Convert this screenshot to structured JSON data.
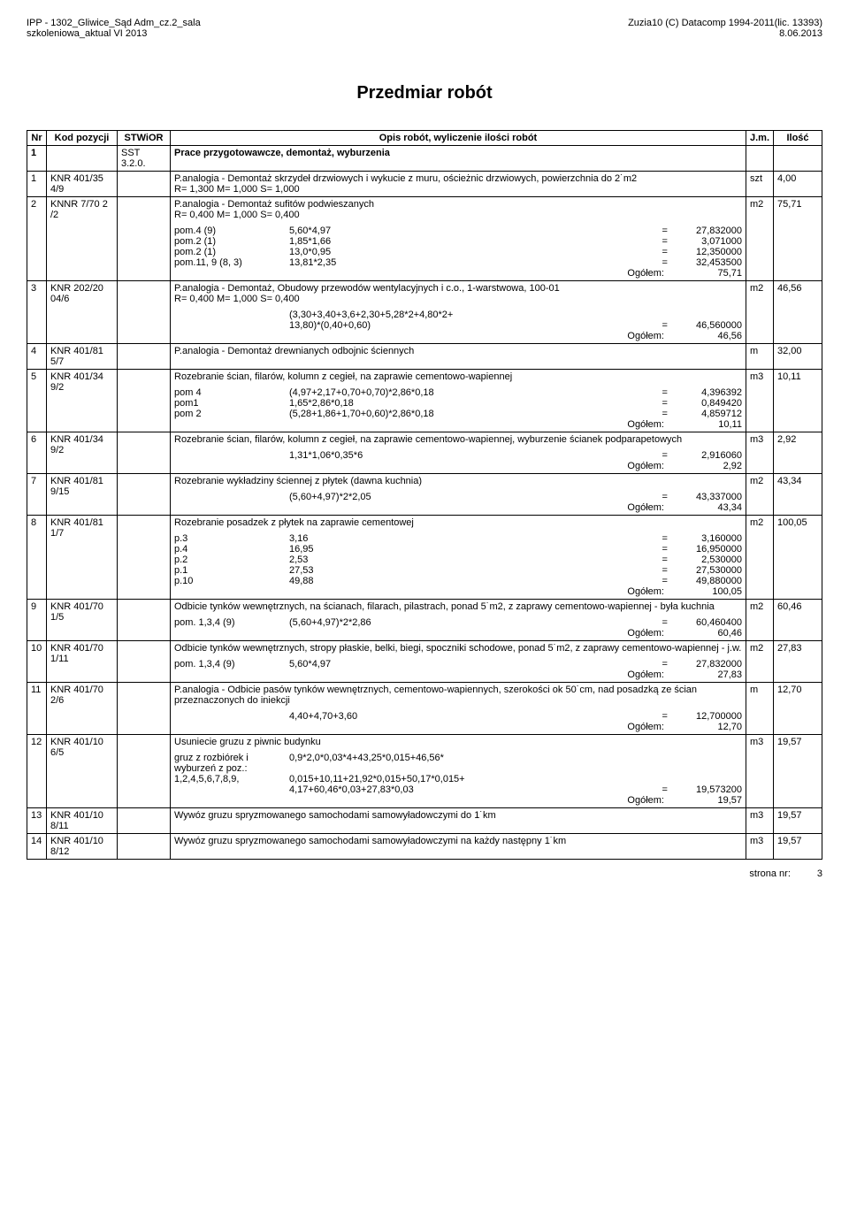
{
  "header": {
    "top_left_1": "IPP - 1302_Gliwice_Sąd Adm_cz.2_sala",
    "top_left_2": "szkoleniowa_aktual VI 2013",
    "top_right_1": "Zuzia10 (C) Datacomp 1994-2011(lic. 13393)",
    "top_right_2": "8.06.2013"
  },
  "title": "Przedmiar robót",
  "columns": {
    "nr": "Nr",
    "kod": "Kod pozycji",
    "stwior": "STWiOR",
    "opis": "Opis robót, wyliczenie ilości robót",
    "jm": "J.m.",
    "ilosc": "Ilość"
  },
  "section": {
    "nr": "1",
    "stwior": "SST 3.2.0.",
    "title": "Prace przygotowawcze, demontaż, wyburzenia"
  },
  "rows": [
    {
      "nr": "1",
      "kod": "KNR 401/35 4/9",
      "desc": "P.analogia - Demontaż skrzydeł drzwiowych i wykucie z muru, ościeżnic drzwiowych, powierzchnia do 2˙m2",
      "coef": "R= 1,300   M= 1,000   S= 1,000",
      "jm": "szt",
      "ilosc": "4,00"
    },
    {
      "nr": "2",
      "kod": "KNNR 7/70 2 /2",
      "desc": "P.analogia - Demontaż sufitów podwieszanych",
      "coef": "R= 0,400   M= 1,000   S= 0,400",
      "calcs": [
        {
          "label": "pom.4 (9)",
          "expr": "5,60*4,97",
          "val": "27,832000"
        },
        {
          "label": "pom.2 (1)",
          "expr": "1,85*1,66",
          "val": "3,071000"
        },
        {
          "label": "pom.2 (1)",
          "expr": "13,0*0,95",
          "val": "12,350000"
        },
        {
          "label": "pom.11, 9 (8, 3)",
          "expr": "13,81*2,35",
          "val": "32,453500"
        }
      ],
      "ogol": "75,71",
      "jm": "m2",
      "ilosc": "75,71"
    },
    {
      "nr": "3",
      "kod": "KNR 202/20 04/6",
      "desc": "P.analogia - Demontaż, Obudowy przewodów wentylacyjnych i c.o., 1-warstwowa, 100-01",
      "coef": "R= 0,400   M= 1,000   S= 0,400",
      "calcs": [
        {
          "label": "",
          "expr": "(3,30+3,40+3,6+2,30+5,28*2+4,80*2+",
          "val": ""
        },
        {
          "label": "",
          "expr": "13,80)*(0,40+0,60)",
          "val": "46,560000"
        }
      ],
      "ogol": "46,56",
      "jm": "m2",
      "ilosc": "46,56"
    },
    {
      "nr": "4",
      "kod": "KNR 401/81 5/7",
      "desc": "P.analogia - Demontaż drewnianych odbojnic ściennych",
      "jm": "m",
      "ilosc": "32,00"
    },
    {
      "nr": "5",
      "kod": "KNR 401/34 9/2",
      "desc": "Rozebranie ścian, filarów, kolumn z cegieł, na zaprawie cementowo-wapiennej",
      "calcs": [
        {
          "label": "pom 4",
          "expr": "(4,97+2,17+0,70+0,70)*2,86*0,18",
          "val": "4,396392"
        },
        {
          "label": "pom1",
          "expr": "1,65*2,86*0,18",
          "val": "0,849420"
        },
        {
          "label": "pom 2",
          "expr": "(5,28+1,86+1,70+0,60)*2,86*0,18",
          "val": "4,859712"
        }
      ],
      "ogol": "10,11",
      "jm": "m3",
      "ilosc": "10,11"
    },
    {
      "nr": "6",
      "kod": "KNR 401/34 9/2",
      "desc": "Rozebranie ścian, filarów, kolumn z cegieł, na zaprawie cementowo-wapiennej, wyburzenie ścianek podparapetowych",
      "calcs": [
        {
          "label": "",
          "expr": "1,31*1,06*0,35*6",
          "val": "2,916060"
        }
      ],
      "ogol": "2,92",
      "jm": "m3",
      "ilosc": "2,92"
    },
    {
      "nr": "7",
      "kod": "KNR 401/81 9/15",
      "desc": "Rozebranie wykładziny ściennej z płytek (dawna kuchnia)",
      "calcs": [
        {
          "label": "",
          "expr": "(5,60+4,97)*2*2,05",
          "val": "43,337000"
        }
      ],
      "ogol": "43,34",
      "jm": "m2",
      "ilosc": "43,34"
    },
    {
      "nr": "8",
      "kod": "KNR 401/81 1/7",
      "desc": "Rozebranie posadzek z płytek na zaprawie cementowej",
      "calcs": [
        {
          "label": "p.3",
          "expr": "3,16",
          "val": "3,160000"
        },
        {
          "label": "p.4",
          "expr": "16,95",
          "val": "16,950000"
        },
        {
          "label": "p.2",
          "expr": "2,53",
          "val": "2,530000"
        },
        {
          "label": "p.1",
          "expr": "27,53",
          "val": "27,530000"
        },
        {
          "label": "p.10",
          "expr": "49,88",
          "val": "49,880000"
        }
      ],
      "ogol": "100,05",
      "jm": "m2",
      "ilosc": "100,05"
    },
    {
      "nr": "9",
      "kod": "KNR 401/70 1/5",
      "desc": "Odbicie tynków wewnętrznych, na ścianach, filarach, pilastrach, ponad 5˙m2, z zaprawy cementowo-wapiennej - była kuchnia",
      "calcs": [
        {
          "label": "pom. 1,3,4 (9)",
          "expr": "(5,60+4,97)*2*2,86",
          "val": "60,460400"
        }
      ],
      "ogol": "60,46",
      "jm": "m2",
      "ilosc": "60,46"
    },
    {
      "nr": "10",
      "kod": "KNR 401/70 1/11",
      "desc": "Odbicie tynków wewnętrznych, stropy płaskie, belki, biegi, spoczniki schodowe, ponad 5˙m2, z zaprawy cementowo-wapiennej - j.w.",
      "calcs": [
        {
          "label": "pom. 1,3,4 (9)",
          "expr": "5,60*4,97",
          "val": "27,832000"
        }
      ],
      "ogol": "27,83",
      "jm": "m2",
      "ilosc": "27,83"
    },
    {
      "nr": "11",
      "kod": "KNR 401/70 2/6",
      "desc": "P.analogia - Odbicie pasów tynków wewnętrznych, cementowo-wapiennych, szerokości ok 50˙cm, nad posadzką ze ścian przeznaczonych do iniekcji",
      "calcs": [
        {
          "label": "",
          "expr": "4,40+4,70+3,60",
          "val": "12,700000"
        }
      ],
      "ogol": "12,70",
      "jm": "m",
      "ilosc": "12,70"
    },
    {
      "nr": "12",
      "kod": "KNR 401/10 6/5",
      "desc": "Usuniecie gruzu z piwnic budynku",
      "calcs": [
        {
          "label": "gruz z rozbiórek i wyburzeń z poz.:",
          "expr": "0,9*2,0*0,03*4+43,25*0,015+46,56*",
          "val": ""
        },
        {
          "label": "1,2,4,5,6,7,8,9,",
          "expr": "0,015+10,11+21,92*0,015+50,17*0,015+",
          "val": ""
        },
        {
          "label": "",
          "expr": "4,17+60,46*0,03+27,83*0,03",
          "val": "19,573200"
        }
      ],
      "ogol": "19,57",
      "jm": "m3",
      "ilosc": "19,57"
    },
    {
      "nr": "13",
      "kod": "KNR 401/10 8/11",
      "desc": "Wywóz gruzu spryzmowanego samochodami samowyładowczymi do 1˙km",
      "jm": "m3",
      "ilosc": "19,57"
    },
    {
      "nr": "14",
      "kod": "KNR 401/10 8/12",
      "desc": "Wywóz gruzu spryzmowanego samochodami samowyładowczymi na każdy następny 1˙km",
      "jm": "m3",
      "ilosc": "19,57"
    }
  ],
  "ogol_label": "Ogółem:",
  "eq": "=",
  "footer": {
    "label": "strona nr:",
    "num": "3"
  }
}
